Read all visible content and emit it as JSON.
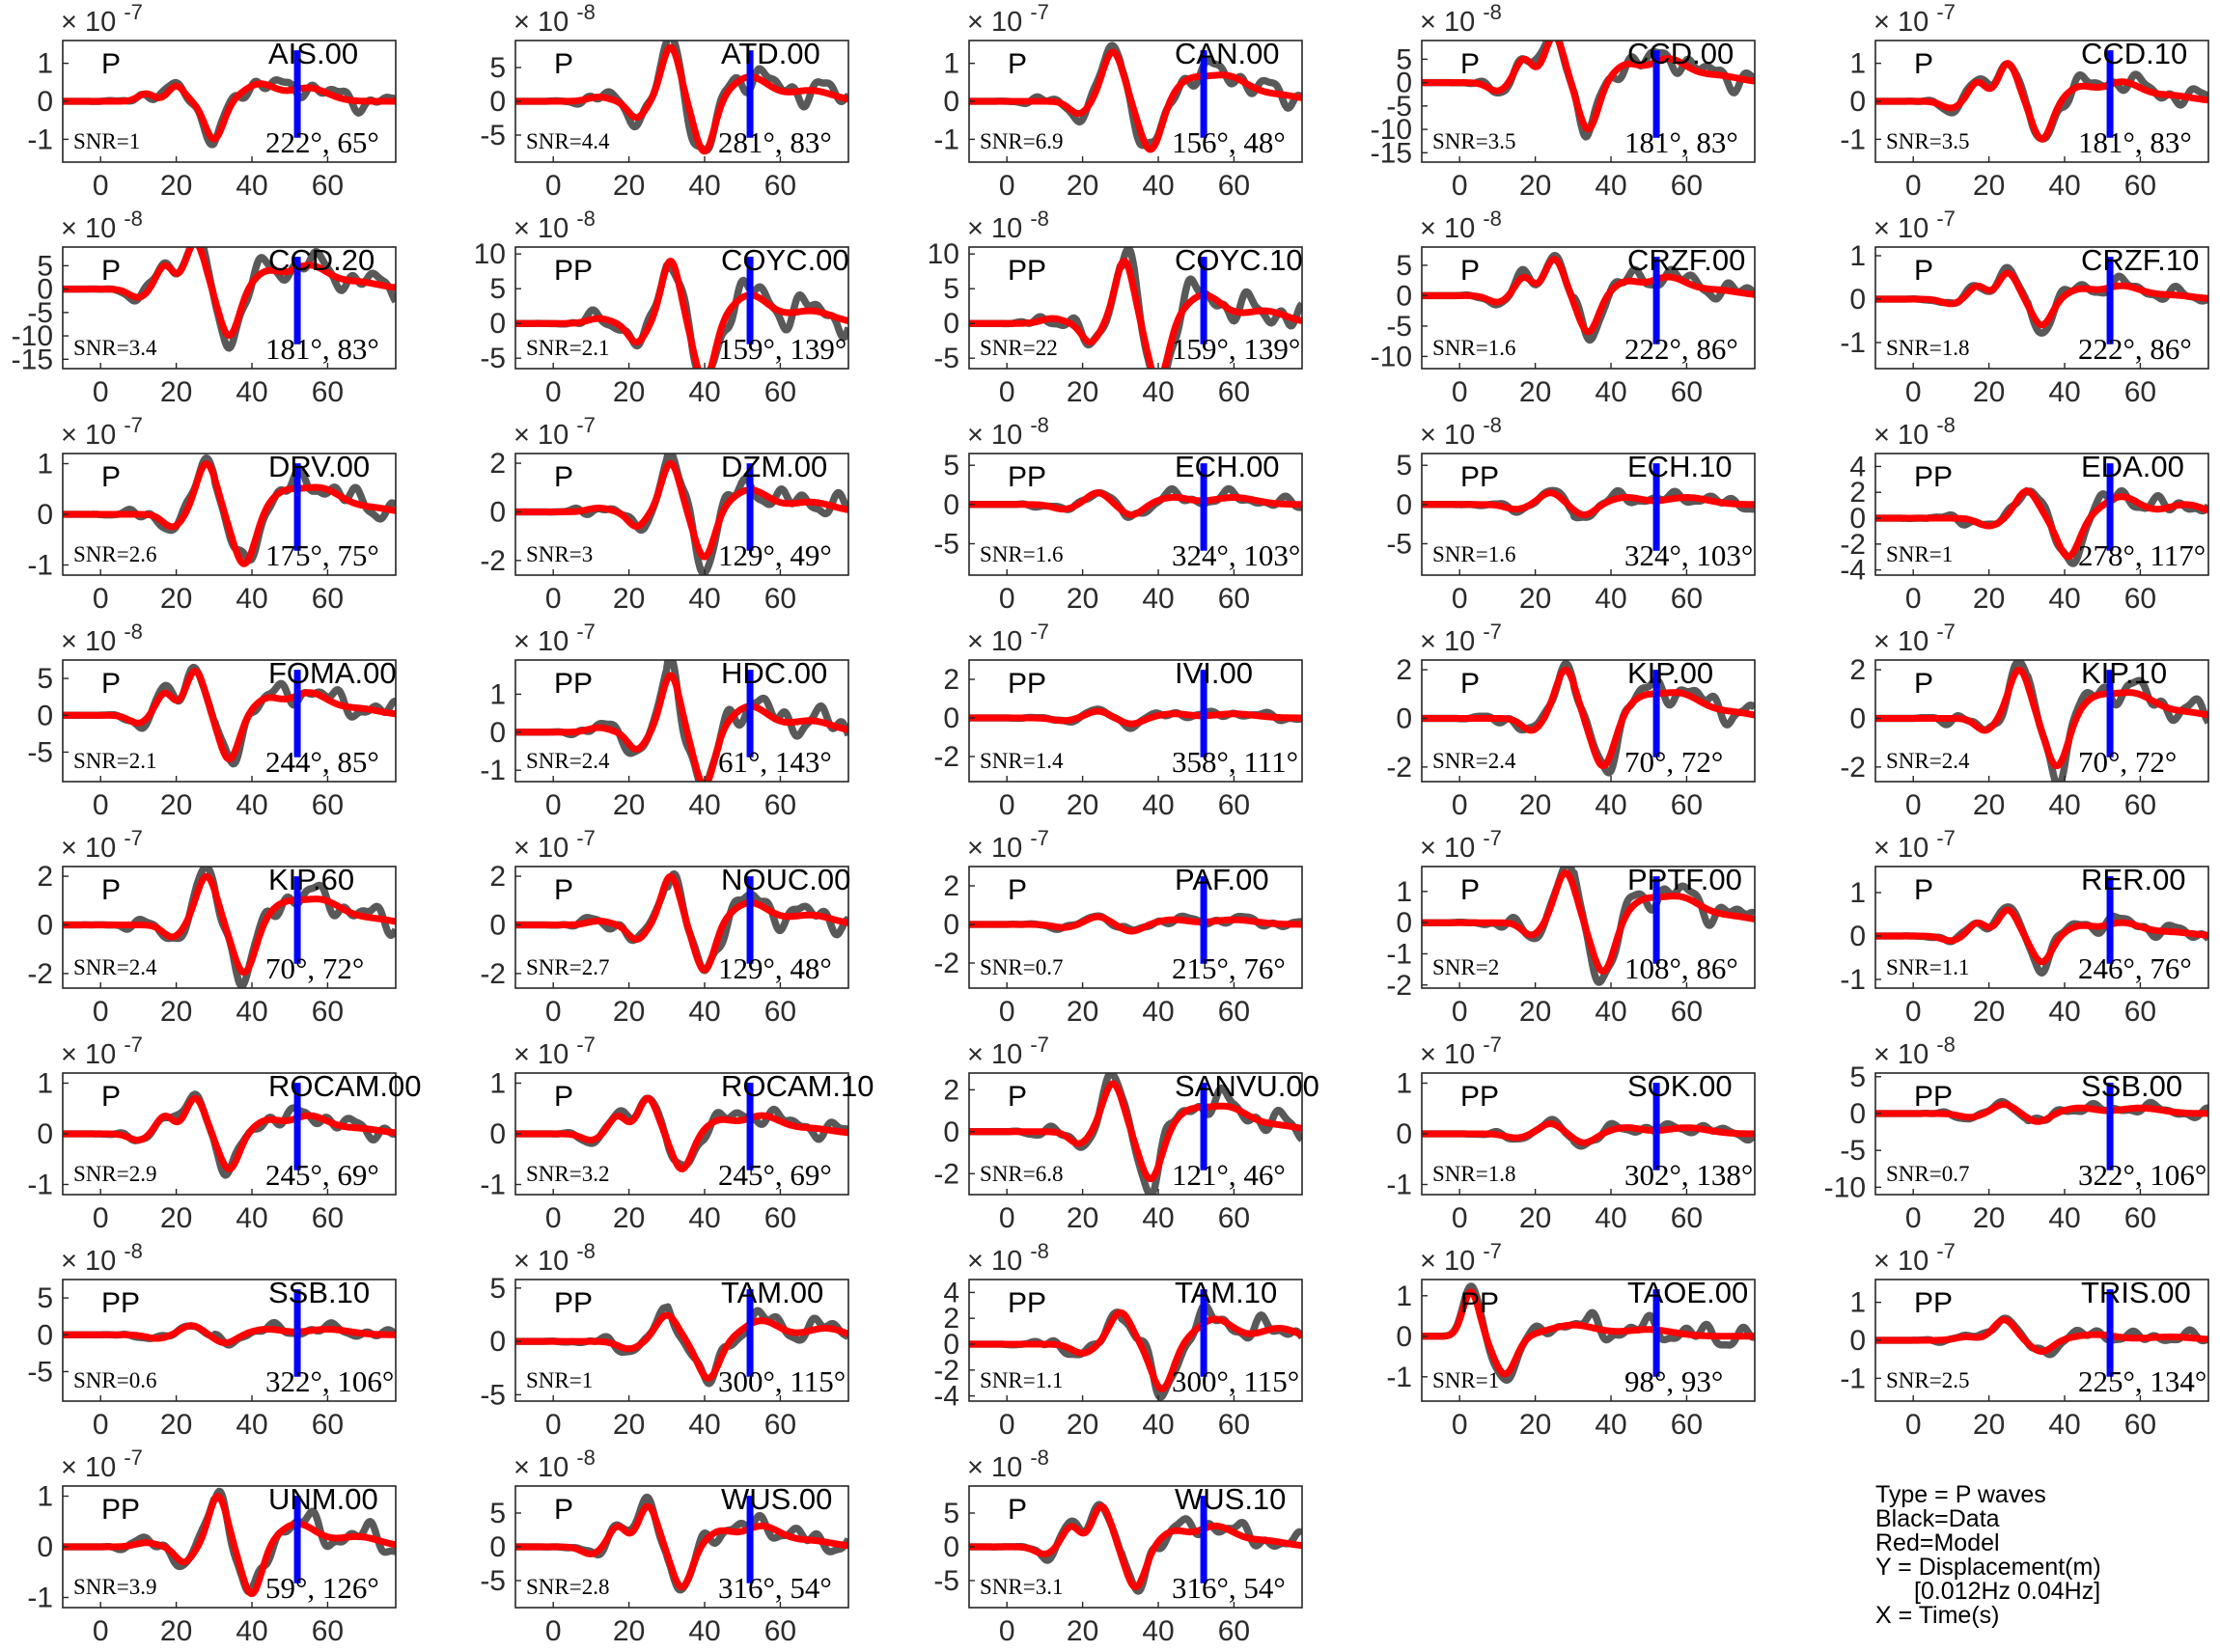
{
  "chart_data": {
    "type": "line",
    "series_meta": [
      {
        "name": "Black=Data",
        "color": "#595959"
      },
      {
        "name": "Red=Model",
        "color": "#ff0000"
      }
    ],
    "marker_color": "#0000ff",
    "xlim": [
      -10,
      78
    ],
    "xticks": [
      0,
      20,
      40,
      60
    ],
    "marker_x": 52,
    "panels": [
      {
        "station": "AIS.00",
        "phase": "P",
        "snr": "SNR=1",
        "angles": "222°, 65°",
        "exponent": "-7",
        "ylim": [
          -1.6,
          1.6
        ],
        "yticks": [
          -1,
          0,
          1
        ],
        "shape": 4,
        "amp": 1.0,
        "hasData": true
      },
      {
        "station": "ATD.00",
        "phase": "P",
        "snr": "SNR=4.4",
        "angles": "281°, 83°",
        "exponent": "-8",
        "ylim": [
          -9,
          9
        ],
        "yticks": [
          -5,
          0,
          5
        ],
        "shape": 3,
        "amp": 8.0,
        "hasData": true
      },
      {
        "station": "CAN.00",
        "phase": "P",
        "snr": "SNR=6.9",
        "angles": "156°, 48°",
        "exponent": "-7",
        "ylim": [
          -1.6,
          1.6
        ],
        "yticks": [
          -1,
          0,
          1
        ],
        "shape": 2,
        "amp": 1.3,
        "hasData": true
      },
      {
        "station": "CCD.00",
        "phase": "P",
        "snr": "SNR=3.5",
        "angles": "181°, 83°",
        "exponent": "-8",
        "ylim": [
          -17,
          9
        ],
        "yticks": [
          -15,
          -10,
          -5,
          0,
          5
        ],
        "shape": 1,
        "amp": 10.0,
        "hasData": true
      },
      {
        "station": "CCD.10",
        "phase": "P",
        "snr": "SNR=3.5",
        "angles": "181°, 83°",
        "exponent": "-7",
        "ylim": [
          -1.6,
          1.6
        ],
        "yticks": [
          -1,
          0,
          1
        ],
        "shape": 1,
        "amp": 1.0,
        "hasData": true
      },
      {
        "station": "CCD.20",
        "phase": "P",
        "snr": "SNR=3.4",
        "angles": "181°, 83°",
        "exponent": "-8",
        "ylim": [
          -17,
          9
        ],
        "yticks": [
          -15,
          -10,
          -5,
          0,
          5
        ],
        "shape": 1,
        "amp": 10.0,
        "hasData": true
      },
      {
        "station": "COYC.00",
        "phase": "PP",
        "snr": "SNR=2.1",
        "angles": "159°, 139°",
        "exponent": "-8",
        "ylim": [
          -6.5,
          11
        ],
        "yticks": [
          -5,
          0,
          5,
          10
        ],
        "shape": 3,
        "amp": 9.0,
        "hasData": true
      },
      {
        "station": "COYC.10",
        "phase": "PP",
        "snr": "SNR=22",
        "angles": "159°, 139°",
        "exponent": "-8",
        "ylim": [
          -6.5,
          11
        ],
        "yticks": [
          -5,
          0,
          5,
          10
        ],
        "shape": 3,
        "amp": 9.0,
        "hasData": true
      },
      {
        "station": "CRZF.00",
        "phase": "P",
        "snr": "SNR=1.6",
        "angles": "222°, 86°",
        "exponent": "-8",
        "ylim": [
          -12,
          8
        ],
        "yticks": [
          -10,
          -5,
          0,
          5
        ],
        "shape": 1,
        "amp": 6.0,
        "hasData": true
      },
      {
        "station": "CRZF.10",
        "phase": "P",
        "snr": "SNR=1.8",
        "angles": "222°, 86°",
        "exponent": "-7",
        "ylim": [
          -1.6,
          1.2
        ],
        "yticks": [
          -1,
          0,
          1
        ],
        "shape": 1,
        "amp": 0.6,
        "hasData": true
      },
      {
        "station": "DRV.00",
        "phase": "P",
        "snr": "SNR=2.6",
        "angles": "175°, 75°",
        "exponent": "-7",
        "ylim": [
          -1.2,
          1.2
        ],
        "yticks": [
          -1,
          0,
          1
        ],
        "shape": 2,
        "amp": 1.0,
        "hasData": true
      },
      {
        "station": "DZM.00",
        "phase": "P",
        "snr": "SNR=3",
        "angles": "129°, 49°",
        "exponent": "-7",
        "ylim": [
          -2.6,
          2.4
        ],
        "yticks": [
          -2,
          0,
          2
        ],
        "shape": 3,
        "amp": 2.0,
        "hasData": true
      },
      {
        "station": "ECH.00",
        "phase": "PP",
        "snr": "SNR=1.6",
        "angles": "324°, 103°",
        "exponent": "-8",
        "ylim": [
          -9,
          6.5
        ],
        "yticks": [
          -5,
          0,
          5
        ],
        "shape": 5,
        "amp": 3.0,
        "hasData": true
      },
      {
        "station": "ECH.10",
        "phase": "PP",
        "snr": "SNR=1.6",
        "angles": "324°, 103°",
        "exponent": "-8",
        "ylim": [
          -9,
          6.5
        ],
        "yticks": [
          -5,
          0,
          5
        ],
        "shape": 5,
        "amp": 3.0,
        "hasData": true
      },
      {
        "station": "EDA.00",
        "phase": "PP",
        "snr": "SNR=1",
        "angles": "278°, 117°",
        "exponent": "-8",
        "ylim": [
          -4.4,
          5
        ],
        "yticks": [
          -4,
          -2,
          0,
          2,
          4
        ],
        "shape": 6,
        "amp": 3.0,
        "hasData": true
      },
      {
        "station": "FOMA.00",
        "phase": "P",
        "snr": "SNR=2.1",
        "angles": "244°, 85°",
        "exponent": "-8",
        "ylim": [
          -9,
          7.5
        ],
        "yticks": [
          -5,
          0,
          5
        ],
        "shape": 1,
        "amp": 6.0,
        "hasData": true
      },
      {
        "station": "HDC.00",
        "phase": "PP",
        "snr": "SNR=2.4",
        "angles": "61°, 143°",
        "exponent": "-7",
        "ylim": [
          -1.3,
          1.9
        ],
        "yticks": [
          -1,
          0,
          1
        ],
        "shape": 3,
        "amp": 1.5,
        "hasData": true
      },
      {
        "station": "IVI.00",
        "phase": "PP",
        "snr": "SNR=1.4",
        "angles": "358°, 111°",
        "exponent": "-7",
        "ylim": [
          -3.3,
          3
        ],
        "yticks": [
          -2,
          0,
          2
        ],
        "shape": 5,
        "amp": 0.7,
        "hasData": true
      },
      {
        "station": "KIP.00",
        "phase": "P",
        "snr": "SNR=2.4",
        "angles": "70°, 72°",
        "exponent": "-7",
        "ylim": [
          -2.6,
          2.4
        ],
        "yticks": [
          -2,
          0,
          2
        ],
        "shape": 2,
        "amp": 2.0,
        "hasData": true
      },
      {
        "station": "KIP.10",
        "phase": "P",
        "snr": "SNR=2.4",
        "angles": "70°, 72°",
        "exponent": "-7",
        "ylim": [
          -2.6,
          2.4
        ],
        "yticks": [
          -2,
          0,
          2
        ],
        "shape": 2,
        "amp": 2.0,
        "hasData": true
      },
      {
        "station": "KIP.60",
        "phase": "P",
        "snr": "SNR=2.4",
        "angles": "70°, 72°",
        "exponent": "-7",
        "ylim": [
          -2.6,
          2.4
        ],
        "yticks": [
          -2,
          0,
          2
        ],
        "shape": 2,
        "amp": 2.0,
        "hasData": true
      },
      {
        "station": "NOUC.00",
        "phase": "P",
        "snr": "SNR=2.7",
        "angles": "129°, 48°",
        "exponent": "-7",
        "ylim": [
          -2.6,
          2.4
        ],
        "yticks": [
          -2,
          0,
          2
        ],
        "shape": 3,
        "amp": 2.0,
        "hasData": true
      },
      {
        "station": "PAF.00",
        "phase": "P",
        "snr": "SNR=0.7",
        "angles": "215°, 76°",
        "exponent": "-7",
        "ylim": [
          -3.3,
          3
        ],
        "yticks": [
          -2,
          0,
          2
        ],
        "shape": 5,
        "amp": 0.8,
        "hasData": true
      },
      {
        "station": "PPTF.00",
        "phase": "P",
        "snr": "SNR=2",
        "angles": "108°, 86°",
        "exponent": "-7",
        "ylim": [
          -2.1,
          1.8
        ],
        "yticks": [
          -2,
          -1,
          0,
          1
        ],
        "shape": 2,
        "amp": 1.6,
        "hasData": true
      },
      {
        "station": "RER.00",
        "phase": "P",
        "snr": "SNR=1.1",
        "angles": "246°, 76°",
        "exponent": "-7",
        "ylim": [
          -1.2,
          1.6
        ],
        "yticks": [
          -1,
          0,
          1
        ],
        "shape": 1,
        "amp": 0.6,
        "hasData": true
      },
      {
        "station": "ROCAM.00",
        "phase": "P",
        "snr": "SNR=2.9",
        "angles": "245°, 69°",
        "exponent": "-7",
        "ylim": [
          -1.2,
          1.2
        ],
        "yticks": [
          -1,
          0,
          1
        ],
        "shape": 1,
        "amp": 0.7,
        "hasData": true
      },
      {
        "station": "ROCAM.10",
        "phase": "P",
        "snr": "SNR=3.2",
        "angles": "245°, 69°",
        "exponent": "-7",
        "ylim": [
          -1.2,
          1.2
        ],
        "yticks": [
          -1,
          0,
          1
        ],
        "shape": 1,
        "amp": 0.7,
        "hasData": true
      },
      {
        "station": "SANVU.00",
        "phase": "P",
        "snr": "SNR=6.8",
        "angles": "121°, 46°",
        "exponent": "-7",
        "ylim": [
          -3,
          2.8
        ],
        "yticks": [
          -2,
          0,
          2
        ],
        "shape": 2,
        "amp": 2.3,
        "hasData": true
      },
      {
        "station": "SOK.00",
        "phase": "PP",
        "snr": "SNR=1.8",
        "angles": "302°, 138°",
        "exponent": "-7",
        "ylim": [
          -1.2,
          1.2
        ],
        "yticks": [
          -1,
          0,
          1
        ],
        "shape": 5,
        "amp": 0.4,
        "hasData": true
      },
      {
        "station": "SSB.00",
        "phase": "PP",
        "snr": "SNR=0.7",
        "angles": "322°, 106°",
        "exponent": "-8",
        "ylim": [
          -11,
          5.5
        ],
        "yticks": [
          -10,
          -5,
          0,
          5
        ],
        "shape": 5,
        "amp": 2.5,
        "hasData": true
      },
      {
        "station": "SSB.10",
        "phase": "PP",
        "snr": "SNR=0.6",
        "angles": "322°, 106°",
        "exponent": "-8",
        "ylim": [
          -9,
          7.5
        ],
        "yticks": [
          -5,
          0,
          5
        ],
        "shape": 5,
        "amp": 2.5,
        "hasData": true
      },
      {
        "station": "TAM.00",
        "phase": "PP",
        "snr": "SNR=1",
        "angles": "300°, 115°",
        "exponent": "-8",
        "ylim": [
          -5.6,
          5.8
        ],
        "yticks": [
          -5,
          0,
          5
        ],
        "shape": 6,
        "amp": 3.5,
        "hasData": true
      },
      {
        "station": "TAM.10",
        "phase": "PP",
        "snr": "SNR=1.1",
        "angles": "300°, 115°",
        "exponent": "-8",
        "ylim": [
          -4.4,
          5
        ],
        "yticks": [
          -4,
          -2,
          0,
          2,
          4
        ],
        "shape": 6,
        "amp": 3.5,
        "hasData": true
      },
      {
        "station": "TAOE.00",
        "phase": "PP",
        "snr": "SNR=1",
        "angles": "98°, 93°",
        "exponent": "-7",
        "ylim": [
          -1.6,
          1.4
        ],
        "yticks": [
          -1,
          0,
          1
        ],
        "shape": 7,
        "amp": 1.1,
        "hasData": true
      },
      {
        "station": "TRIS.00",
        "phase": "PP",
        "snr": "SNR=2.5",
        "angles": "225°, 134°",
        "exponent": "-7",
        "ylim": [
          -1.6,
          1.6
        ],
        "yticks": [
          -1,
          0,
          1
        ],
        "shape": 8,
        "amp": 0.6,
        "hasData": true
      },
      {
        "station": "UNM.00",
        "phase": "PP",
        "snr": "SNR=3.9",
        "angles": "59°, 126°",
        "exponent": "-7",
        "ylim": [
          -1.2,
          1.2
        ],
        "yticks": [
          -1,
          0,
          1
        ],
        "shape": 3,
        "amp": 1.0,
        "hasData": true
      },
      {
        "station": "WUS.00",
        "phase": "P",
        "snr": "SNR=2.8",
        "angles": "316°, 54°",
        "exponent": "-8",
        "ylim": [
          -9,
          9
        ],
        "yticks": [
          -5,
          0,
          5
        ],
        "shape": 1,
        "amp": 6.0,
        "hasData": true
      },
      {
        "station": "WUS.10",
        "phase": "P",
        "snr": "SNR=3.1",
        "angles": "316°, 54°",
        "exponent": "-8",
        "ylim": [
          -9,
          9
        ],
        "yticks": [
          -5,
          0,
          5
        ],
        "shape": 1,
        "amp": 6.0,
        "hasData": true
      }
    ],
    "legend_lines": [
      "Type = P waves",
      "Black=Data",
      "Red=Model",
      "Y = Displacement(m)",
      "[0.012Hz 0.04Hz]",
      "X = Time(s)"
    ]
  }
}
